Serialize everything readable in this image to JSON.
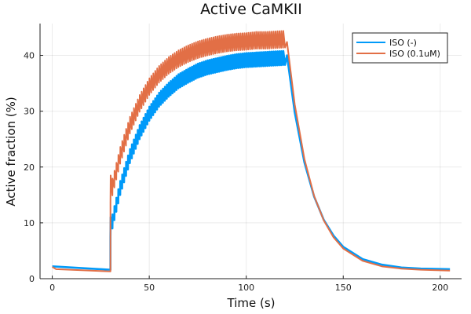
{
  "chart_data": {
    "type": "line",
    "title": "Active CaMKII",
    "xlabel": "Time (s)",
    "ylabel": "Active fraction (%)",
    "xlim": [
      -6.3,
      211
    ],
    "ylim": [
      0,
      45.7
    ],
    "xticks": [
      0,
      50,
      100,
      150,
      200
    ],
    "yticks": [
      0,
      10,
      20,
      30,
      40
    ],
    "grid": true,
    "legend_position": "top-right",
    "pacing_period_s": 1,
    "series": [
      {
        "name": "ISO (-)",
        "color": "#009af9",
        "baseline": {
          "x": [
            0,
            30
          ],
          "y": [
            2.2,
            1.6
          ]
        },
        "paced": {
          "x": [
            30,
            35,
            40,
            45,
            50,
            55,
            60,
            65,
            70,
            75,
            80,
            85,
            90,
            95,
            100,
            105,
            110,
            115,
            120
          ],
          "lower": [
            7.5,
            15.0,
            20.7,
            25.0,
            28.3,
            30.8,
            32.6,
            34.1,
            35.1,
            36.0,
            36.6,
            37.0,
            37.4,
            37.7,
            37.9,
            38.0,
            38.1,
            38.2,
            38.3
          ],
          "upper": [
            10.0,
            17.5,
            23.2,
            27.5,
            30.8,
            33.3,
            35.1,
            36.6,
            37.6,
            38.5,
            39.1,
            39.5,
            39.9,
            40.2,
            40.4,
            40.5,
            40.6,
            40.7,
            40.8
          ],
          "first_peak": 11.0
        },
        "decay": {
          "x": [
            121,
            125,
            130,
            135,
            140,
            145,
            150,
            160,
            170,
            180,
            190,
            205
          ],
          "y": [
            40.0,
            29.8,
            20.8,
            14.7,
            10.5,
            7.7,
            5.7,
            3.5,
            2.5,
            2.0,
            1.8,
            1.7
          ]
        }
      },
      {
        "name": "ISO (0.1uM)",
        "color": "#e26f46",
        "baseline": {
          "x": [
            0,
            2,
            30
          ],
          "y": [
            2.1,
            1.7,
            1.3
          ]
        },
        "paced": {
          "x": [
            30,
            35,
            40,
            45,
            50,
            55,
            60,
            65,
            70,
            75,
            80,
            85,
            90,
            95,
            100,
            105,
            110,
            115,
            120
          ],
          "lower": [
            13.5,
            20.6,
            26.0,
            29.9,
            32.9,
            35.1,
            36.7,
            37.9,
            38.8,
            39.5,
            40.0,
            40.4,
            40.7,
            40.9,
            41.0,
            41.2,
            41.2,
            41.3,
            41.4
          ],
          "upper": [
            16.5,
            23.6,
            29.0,
            32.9,
            35.9,
            38.1,
            39.7,
            40.9,
            41.8,
            42.5,
            43.0,
            43.4,
            43.7,
            43.9,
            44.0,
            44.2,
            44.2,
            44.3,
            44.4
          ],
          "first_peak": 18.5
        },
        "decay": {
          "x": [
            121,
            125,
            130,
            135,
            140,
            145,
            150,
            160,
            170,
            180,
            190,
            205
          ],
          "y": [
            42.4,
            31.2,
            21.4,
            14.8,
            10.4,
            7.4,
            5.4,
            3.2,
            2.2,
            1.8,
            1.6,
            1.45
          ]
        }
      }
    ]
  }
}
